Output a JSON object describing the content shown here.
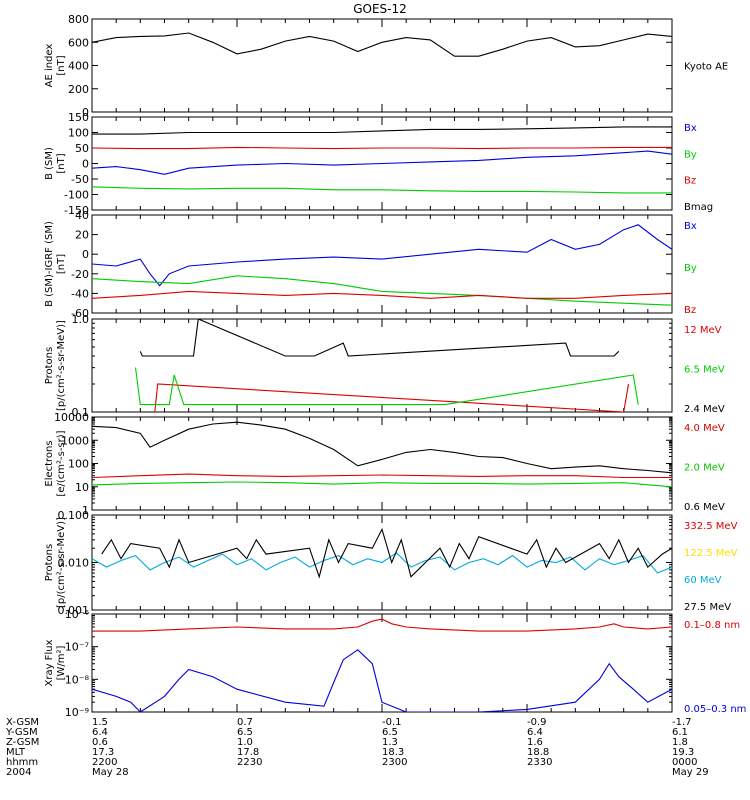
{
  "title": "GOES-12",
  "colors": {
    "black": "#000000",
    "red": "#dd0000",
    "green": "#00cc00",
    "blue": "#0000dd",
    "cyan": "#00aadd",
    "yellow": "#ffdd00"
  },
  "time_axis": {
    "row_labels": [
      "X-GSM",
      "Y-GSM",
      "Z-GSM",
      "MLT",
      "hhmm",
      "2004"
    ],
    "columns": [
      {
        "values": [
          "1.5",
          "6.4",
          "0.6",
          "17.3",
          "2200",
          "May 28"
        ]
      },
      {
        "values": [
          "0.7",
          "6.5",
          "1.0",
          "17.8",
          "2230",
          ""
        ]
      },
      {
        "values": [
          "-0.1",
          "6.5",
          "1.3",
          "18.3",
          "2300",
          ""
        ]
      },
      {
        "values": [
          "-0.9",
          "6.4",
          "1.6",
          "18.8",
          "2330",
          ""
        ]
      },
      {
        "values": [
          "-1.7",
          "6.1",
          "1.8",
          "19.3",
          "0000",
          "May 29"
        ]
      }
    ]
  },
  "chart_data": [
    {
      "type": "line",
      "id": "ae",
      "ylabel": [
        "AE index",
        "[nT]"
      ],
      "ylim": [
        0,
        800
      ],
      "yticks": [
        "0",
        "200",
        "400",
        "600",
        "800"
      ],
      "ytick_values": [
        0,
        200,
        400,
        600,
        800
      ],
      "series": [
        {
          "name": "Kyoto AE",
          "color": "black",
          "x": [
            2200,
            2205,
            2210,
            2215,
            2220,
            2225,
            2230,
            2235,
            2240,
            2245,
            2250,
            2255,
            2300,
            2305,
            2310,
            2315,
            2320,
            2325,
            2330,
            2335,
            2340,
            2345,
            2350,
            2355,
            2400
          ],
          "y": [
            600,
            640,
            650,
            655,
            680,
            600,
            500,
            540,
            610,
            650,
            610,
            520,
            600,
            640,
            620,
            480,
            480,
            540,
            610,
            640,
            560,
            570,
            620,
            670,
            650
          ]
        }
      ]
    },
    {
      "type": "line",
      "id": "b-sm",
      "ylabel": [
        "B (SM)",
        "[nT]"
      ],
      "ylim": [
        -150,
        150
      ],
      "yticks": [
        "150",
        "100",
        "50",
        "0",
        "-50",
        "-100",
        "-150"
      ],
      "ytick_values": [
        150,
        100,
        50,
        0,
        -50,
        -100,
        -150
      ],
      "series": [
        {
          "name": "Bx",
          "color": "blue",
          "x": [
            2200,
            2205,
            2210,
            2215,
            2220,
            2230,
            2240,
            2250,
            2300,
            2310,
            2320,
            2330,
            2340,
            2350,
            2355,
            2400
          ],
          "y": [
            -15,
            -10,
            -20,
            -35,
            -15,
            -5,
            0,
            -5,
            0,
            5,
            10,
            20,
            25,
            35,
            40,
            30
          ]
        },
        {
          "name": "By",
          "color": "green",
          "x": [
            2200,
            2210,
            2220,
            2230,
            2240,
            2250,
            2300,
            2310,
            2320,
            2330,
            2340,
            2350,
            2400
          ],
          "y": [
            -75,
            -80,
            -82,
            -80,
            -80,
            -85,
            -85,
            -88,
            -90,
            -90,
            -92,
            -95,
            -95
          ]
        },
        {
          "name": "Bz",
          "color": "red",
          "x": [
            2200,
            2210,
            2220,
            2230,
            2240,
            2250,
            2300,
            2310,
            2320,
            2330,
            2340,
            2350,
            2400
          ],
          "y": [
            50,
            48,
            48,
            52,
            50,
            48,
            50,
            50,
            48,
            50,
            50,
            52,
            52
          ]
        },
        {
          "name": "Bmag",
          "color": "black",
          "x": [
            2200,
            2210,
            2220,
            2230,
            2240,
            2250,
            2300,
            2310,
            2320,
            2330,
            2340,
            2350,
            2400
          ],
          "y": [
            95,
            95,
            100,
            100,
            100,
            100,
            105,
            110,
            110,
            112,
            115,
            118,
            118
          ]
        }
      ]
    },
    {
      "type": "line",
      "id": "b-sm-igrf",
      "ylabel": [
        "B (SM)-IGRF (SM)",
        "[nT]"
      ],
      "ylim": [
        -60,
        40
      ],
      "yticks": [
        "40",
        "20",
        "0",
        "-20",
        "-40",
        "-60"
      ],
      "ytick_values": [
        40,
        20,
        0,
        -20,
        -40,
        -60
      ],
      "series": [
        {
          "name": "Bx",
          "color": "blue",
          "x": [
            2200,
            2205,
            2210,
            2212,
            2214,
            2216,
            2220,
            2230,
            2240,
            2250,
            2300,
            2310,
            2320,
            2330,
            2335,
            2340,
            2345,
            2350,
            2353,
            2357,
            2400
          ],
          "y": [
            -10,
            -12,
            -5,
            -20,
            -32,
            -20,
            -12,
            -8,
            -5,
            -3,
            -5,
            0,
            5,
            2,
            15,
            5,
            10,
            25,
            30,
            15,
            5
          ]
        },
        {
          "name": "By",
          "color": "green",
          "x": [
            2200,
            2210,
            2220,
            2230,
            2240,
            2250,
            2300,
            2310,
            2320,
            2330,
            2340,
            2350,
            2400
          ],
          "y": [
            -25,
            -28,
            -30,
            -22,
            -25,
            -30,
            -38,
            -40,
            -42,
            -45,
            -48,
            -50,
            -52
          ]
        },
        {
          "name": "Bz",
          "color": "red",
          "x": [
            2200,
            2210,
            2220,
            2230,
            2240,
            2250,
            2300,
            2310,
            2320,
            2330,
            2340,
            2350,
            2400
          ],
          "y": [
            -45,
            -42,
            -38,
            -40,
            -42,
            -40,
            -42,
            -45,
            -42,
            -45,
            -45,
            -42,
            -40
          ]
        }
      ]
    },
    {
      "type": "line",
      "id": "protons-low",
      "ylabel": [
        "Protons",
        "[p/(cm²-s-sr-MeV)]"
      ],
      "ylog": true,
      "ylim": [
        0.1,
        1.0
      ],
      "yticks": [
        "1.0",
        "0.1"
      ],
      "ytick_values": [
        1.0,
        0.1
      ],
      "series": [
        {
          "name": "12 MeV",
          "color": "red",
          "x": [
            2213,
            2213.6,
            2350,
            2351
          ],
          "y": [
            0.1,
            0.2,
            0.1,
            0.2
          ]
        },
        {
          "name": "6.5 MeV",
          "color": "green",
          "x": [
            2209,
            2210,
            2215,
            2216,
            2217,
            2219,
            2220,
            2225,
            2226,
            2312,
            2313,
            2352,
            2353
          ],
          "y": [
            0.3,
            0.12,
            0.12,
            0.12,
            0.25,
            0.12,
            0.12,
            0.12,
            0.12,
            0.12,
            0.12,
            0.25,
            0.12
          ]
        },
        {
          "name": "2.4 MeV",
          "color": "black",
          "x": [
            2210,
            2210.4,
            2221,
            2222,
            2240,
            2241,
            2245,
            2246,
            2252,
            2253,
            2338,
            2339,
            2344,
            2345,
            2348,
            2349
          ],
          "y": [
            0.45,
            0.4,
            0.4,
            1.0,
            0.4,
            0.4,
            0.4,
            0.4,
            0.55,
            0.4,
            0.55,
            0.4,
            0.4,
            0.4,
            0.4,
            0.45
          ]
        }
      ]
    },
    {
      "type": "line",
      "id": "electrons",
      "ylabel": [
        "Electrons",
        "[e/(cm²-s-sr)]"
      ],
      "ylog": true,
      "ylim": [
        1,
        10000
      ],
      "yticks": [
        "10000",
        "1000",
        "100",
        "10",
        "1"
      ],
      "ytick_values": [
        10000,
        1000,
        100,
        10,
        1
      ],
      "series": [
        {
          "name": "4.0 MeV",
          "color": "red",
          "x": [
            2200,
            2210,
            2220,
            2230,
            2240,
            2250,
            2300,
            2310,
            2320,
            2330,
            2340,
            2350,
            2400
          ],
          "y": [
            25,
            30,
            35,
            30,
            28,
            30,
            32,
            30,
            28,
            30,
            30,
            25,
            25
          ]
        },
        {
          "name": "2.0 MeV",
          "color": "green",
          "x": [
            2200,
            2210,
            2220,
            2230,
            2240,
            2250,
            2300,
            2310,
            2320,
            2330,
            2340,
            2350,
            2400
          ],
          "y": [
            12,
            14,
            15,
            16,
            15,
            13,
            15,
            14,
            14,
            13,
            14,
            15,
            10
          ]
        },
        {
          "name": "0.6 MeV",
          "color": "black",
          "x": [
            2200,
            2205,
            2210,
            2212,
            2215,
            2220,
            2225,
            2230,
            2235,
            2240,
            2245,
            2250,
            2255,
            2300,
            2305,
            2310,
            2315,
            2320,
            2325,
            2330,
            2335,
            2340,
            2345,
            2350,
            2355,
            2400
          ],
          "y": [
            4000,
            3500,
            2000,
            500,
            1000,
            3000,
            5000,
            6000,
            4500,
            3000,
            1200,
            400,
            80,
            150,
            300,
            400,
            300,
            200,
            180,
            100,
            60,
            70,
            80,
            60,
            50,
            40
          ]
        }
      ]
    },
    {
      "type": "line",
      "id": "protons-high",
      "ylabel": [
        "Protons",
        "[p/(cm²-s-sr-MeV)]"
      ],
      "ylog": true,
      "ylim": [
        0.001,
        0.1
      ],
      "yticks": [
        "0.100",
        "0.010",
        "0.001"
      ],
      "ytick_values": [
        0.1,
        0.01,
        0.001
      ],
      "series": [
        {
          "name": "332.5 MeV",
          "color": "red",
          "x": [],
          "y": []
        },
        {
          "name": "122.5 MeV",
          "color": "yellow",
          "x": [],
          "y": []
        },
        {
          "name": "60 MeV",
          "color": "cyan",
          "x": [
            2200,
            2203,
            2206,
            2209,
            2212,
            2215,
            2218,
            2221,
            2224,
            2227,
            2230,
            2233,
            2236,
            2239,
            2242,
            2245,
            2248,
            2251,
            2254,
            2257,
            2300,
            2303,
            2306,
            2309,
            2312,
            2315,
            2318,
            2321,
            2324,
            2327,
            2330,
            2333,
            2336,
            2339,
            2342,
            2345,
            2348,
            2351,
            2354,
            2357,
            2400
          ],
          "y": [
            0.012,
            0.008,
            0.011,
            0.014,
            0.007,
            0.01,
            0.013,
            0.008,
            0.011,
            0.015,
            0.009,
            0.012,
            0.007,
            0.01,
            0.013,
            0.008,
            0.011,
            0.014,
            0.009,
            0.012,
            0.01,
            0.016,
            0.008,
            0.011,
            0.013,
            0.007,
            0.01,
            0.012,
            0.009,
            0.014,
            0.008,
            0.011,
            0.01,
            0.013,
            0.007,
            0.012,
            0.009,
            0.011,
            0.014,
            0.006,
            0.008
          ]
        },
        {
          "name": "27.5 MeV",
          "color": "black",
          "x": [
            2202,
            2204,
            2206,
            2208,
            2214,
            2216,
            2218,
            2220,
            2230,
            2232,
            2234,
            2236,
            2245,
            2247,
            2249,
            2251,
            2253,
            2258,
            2300,
            2302,
            2304,
            2306,
            2312,
            2314,
            2316,
            2318,
            2320,
            2330,
            2332,
            2334,
            2336,
            2338,
            2345,
            2347,
            2349,
            2351,
            2353,
            2355,
            2358,
            2400
          ],
          "y": [
            0.015,
            0.03,
            0.012,
            0.025,
            0.02,
            0.008,
            0.03,
            0.01,
            0.02,
            0.012,
            0.03,
            0.015,
            0.02,
            0.005,
            0.03,
            0.01,
            0.025,
            0.02,
            0.05,
            0.01,
            0.03,
            0.005,
            0.02,
            0.008,
            0.025,
            0.012,
            0.035,
            0.015,
            0.03,
            0.008,
            0.02,
            0.01,
            0.025,
            0.012,
            0.03,
            0.01,
            0.02,
            0.008,
            0.015,
            0.02
          ]
        }
      ]
    },
    {
      "type": "line",
      "id": "xray",
      "ylabel": [
        "Xray Flux",
        "[W/m²]"
      ],
      "ylog": true,
      "ylim": [
        1e-09,
        1e-06
      ],
      "yticks": [
        "10⁻⁶",
        "10⁻⁷",
        "10⁻⁸",
        "10⁻⁹"
      ],
      "ytick_values": [
        1e-06,
        1e-07,
        1e-08,
        1e-09
      ],
      "series": [
        {
          "name": "0.1–0.8 nm",
          "color": "red",
          "x": [
            2200,
            2210,
            2220,
            2230,
            2240,
            2250,
            2255,
            2258,
            2300,
            2302,
            2305,
            2310,
            2320,
            2330,
            2340,
            2345,
            2348,
            2350,
            2355,
            2400
          ],
          "y": [
            3e-07,
            3e-07,
            3.5e-07,
            4e-07,
            3.5e-07,
            3.5e-07,
            4e-07,
            6e-07,
            7e-07,
            5e-07,
            4e-07,
            3.5e-07,
            3e-07,
            3e-07,
            3.5e-07,
            4e-07,
            5e-07,
            4e-07,
            3.5e-07,
            4e-07
          ]
        },
        {
          "name": "0.05–0.3 nm",
          "color": "blue",
          "x": [
            2200,
            2205,
            2208,
            2210,
            2215,
            2218,
            2220,
            2225,
            2230,
            2240,
            2248,
            2250,
            2252,
            2255,
            2258,
            2300,
            2305,
            2310,
            2315,
            2320,
            2330,
            2340,
            2345,
            2347,
            2349,
            2352,
            2355,
            2400
          ],
          "y": [
            5e-09,
            3e-09,
            2e-09,
            1e-09,
            3e-09,
            1e-08,
            2e-08,
            1.2e-08,
            5e-09,
            2e-09,
            1.5e-09,
            8e-09,
            4e-08,
            8e-08,
            3e-08,
            2e-09,
            1e-09,
            1e-09,
            1e-09,
            1e-09,
            1.2e-09,
            2e-09,
            1e-08,
            3e-08,
            1.2e-08,
            5e-09,
            2e-09,
            5e-09
          ]
        }
      ]
    }
  ]
}
